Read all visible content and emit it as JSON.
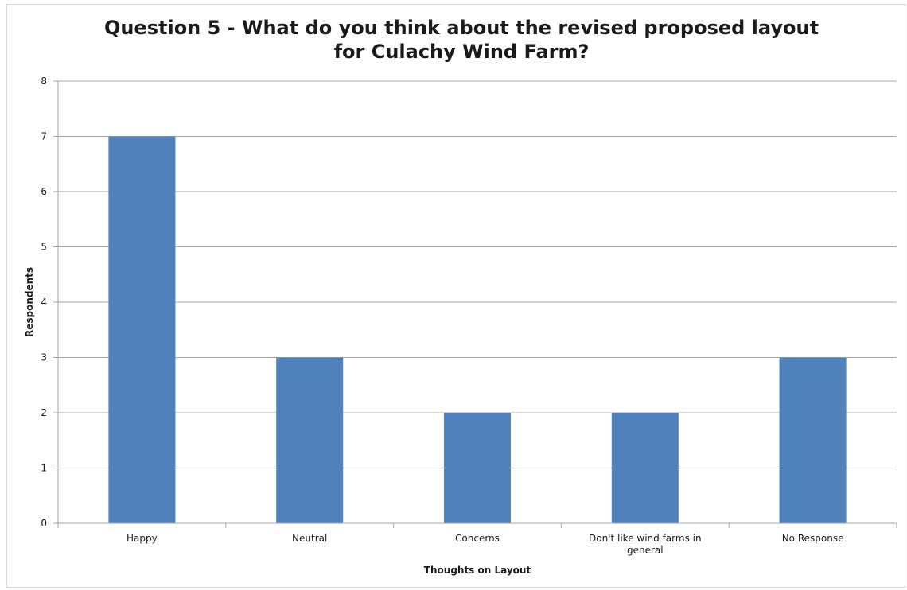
{
  "chart_data": {
    "type": "bar",
    "title_lines": [
      "Question 5 - What do you think about the revised proposed layout",
      "for Culachy Wind Farm?"
    ],
    "categories": [
      [
        "Happy"
      ],
      [
        "Neutral"
      ],
      [
        "Concerns"
      ],
      [
        "Don't like wind farms in",
        "general"
      ],
      [
        "No Response"
      ]
    ],
    "values": [
      7,
      3,
      2,
      2,
      3
    ],
    "xlabel": "Thoughts on Layout",
    "ylabel": "Respondents",
    "ylim": [
      0,
      8
    ],
    "yticks": [
      "0",
      "1",
      "2",
      "3",
      "4",
      "5",
      "6",
      "7",
      "8"
    ],
    "grid": true,
    "bar_color": "#4f81bd",
    "gridline_color": "#a6a6a6"
  }
}
